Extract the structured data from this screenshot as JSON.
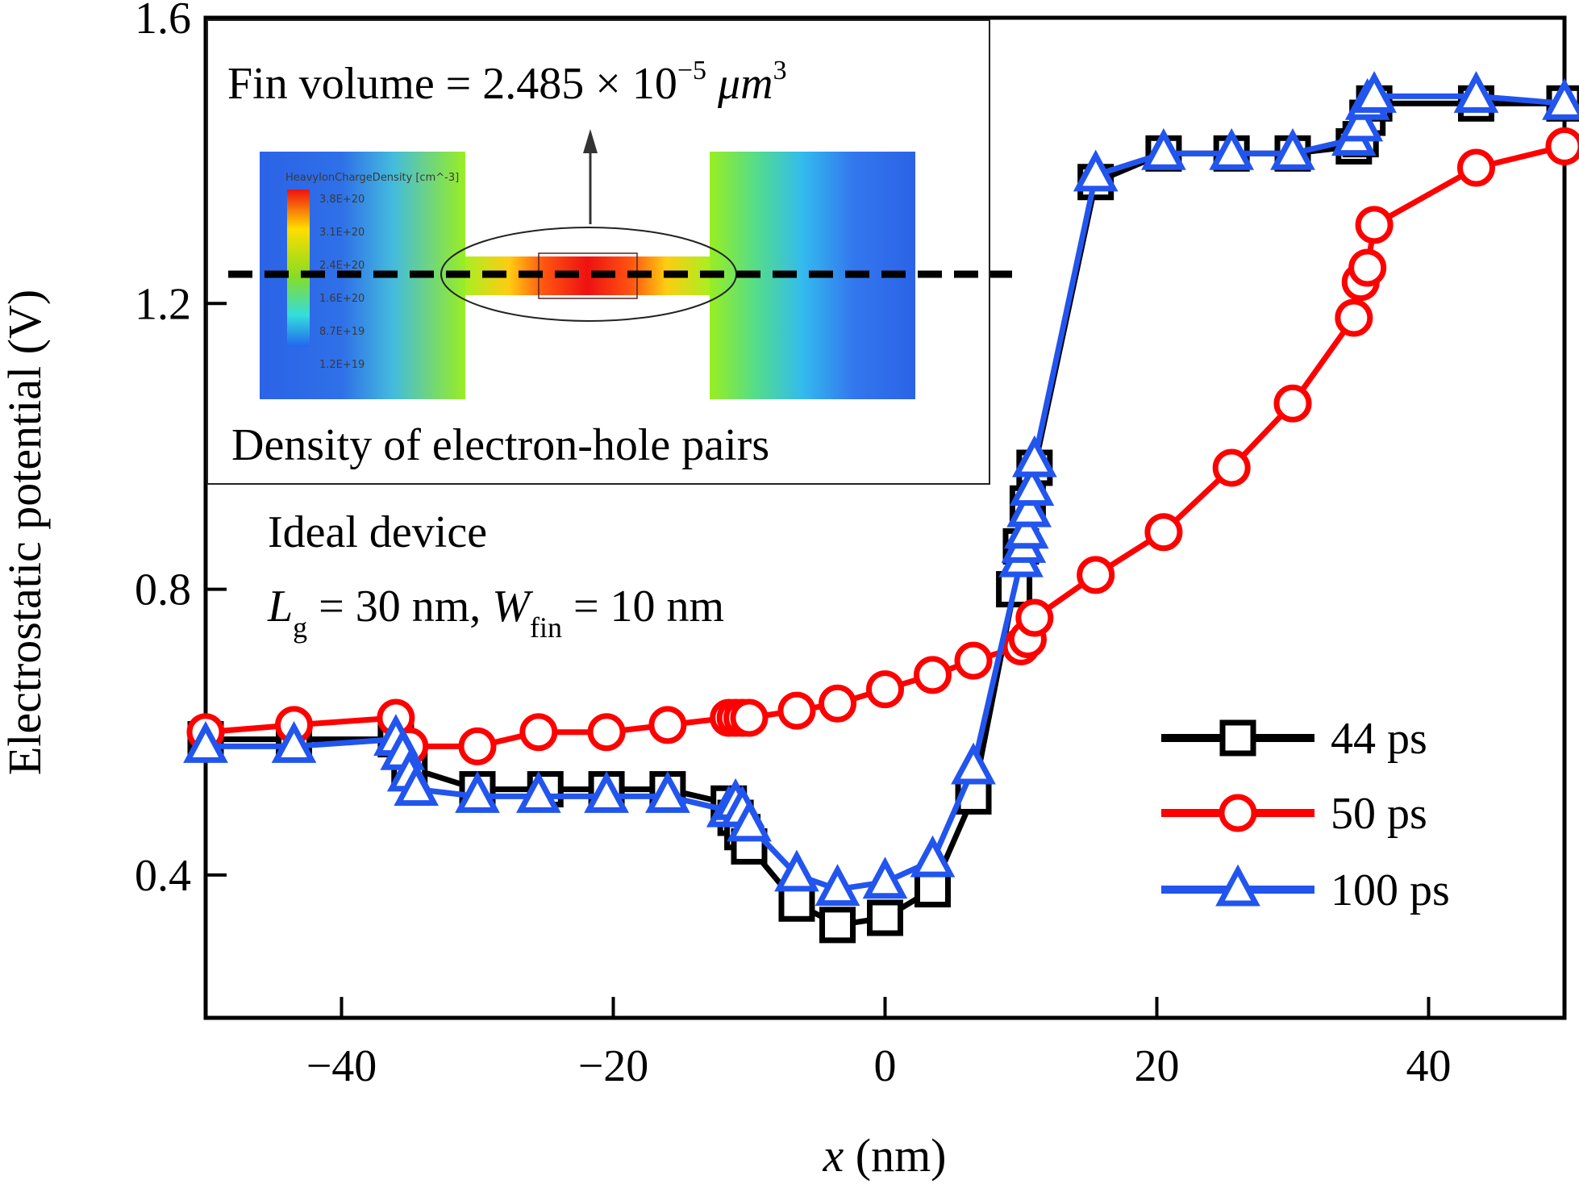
{
  "chart_data": {
    "type": "line",
    "title": "",
    "xlabel": "x (nm)",
    "xlabel_var": "x",
    "xlabel_unit": "(nm)",
    "ylabel": "Electrostatic potential (V)",
    "xlim": [
      -50,
      50
    ],
    "ylim": [
      0.2,
      1.6
    ],
    "xticks": [
      -40,
      -20,
      0,
      20,
      40
    ],
    "xtick_labels": [
      "−40",
      "−20",
      "0",
      "20",
      "40"
    ],
    "yticks": [
      0.4,
      0.8,
      1.2,
      1.6
    ],
    "ytick_labels": [
      "0.4",
      "0.8",
      "1.2",
      "1.6"
    ],
    "grid": false,
    "legend_position": "bottom-right",
    "series": [
      {
        "name": "44 ps",
        "color": "#000000",
        "marker": "square",
        "x": [
          -50,
          -43.5,
          -36,
          -35,
          -30,
          -25,
          -20.5,
          -16,
          -11.5,
          -11,
          -10.5,
          -10,
          -6.5,
          -3.5,
          0,
          3.5,
          6.5,
          9.5,
          10,
          10.5,
          11,
          15.5,
          20.5,
          25.5,
          30,
          34.5,
          35,
          35.5,
          36,
          43.5,
          50
        ],
        "y": [
          0.59,
          0.59,
          0.59,
          0.55,
          0.52,
          0.52,
          0.52,
          0.52,
          0.5,
          0.48,
          0.46,
          0.44,
          0.36,
          0.33,
          0.34,
          0.38,
          0.51,
          0.8,
          0.86,
          0.92,
          0.97,
          1.37,
          1.41,
          1.41,
          1.41,
          1.42,
          1.43,
          1.46,
          1.48,
          1.48,
          1.48
        ]
      },
      {
        "name": "50 ps",
        "color": "#ff0000",
        "marker": "circle",
        "x": [
          -50,
          -43.5,
          -36,
          -35,
          -30,
          -25.5,
          -20.5,
          -16,
          -11.5,
          -11,
          -10.5,
          -10,
          -6.5,
          -3.5,
          0,
          3.5,
          6.5,
          10,
          10.5,
          11,
          15.5,
          20.5,
          25.5,
          30,
          34.5,
          35,
          35.5,
          36,
          43.5,
          50
        ],
        "y": [
          0.6,
          0.61,
          0.62,
          0.58,
          0.58,
          0.6,
          0.6,
          0.61,
          0.62,
          0.62,
          0.62,
          0.62,
          0.63,
          0.64,
          0.66,
          0.68,
          0.7,
          0.72,
          0.73,
          0.76,
          0.82,
          0.88,
          0.97,
          1.06,
          1.18,
          1.23,
          1.25,
          1.31,
          1.39,
          1.42
        ]
      },
      {
        "name": "100 ps",
        "color": "#2255ee",
        "marker": "triangle",
        "x": [
          -50,
          -43.5,
          -36,
          -35.5,
          -35,
          -34.5,
          -30,
          -25.5,
          -20.5,
          -16,
          -11.5,
          -11,
          -10.5,
          -10,
          -6.5,
          -3.5,
          0,
          3.5,
          6.5,
          10,
          10.2,
          10.4,
          10.6,
          10.8,
          11,
          15.5,
          20.5,
          25.5,
          30,
          34.5,
          35,
          35.5,
          36,
          43.5,
          50
        ],
        "y": [
          0.58,
          0.58,
          0.59,
          0.57,
          0.54,
          0.52,
          0.51,
          0.51,
          0.51,
          0.51,
          0.49,
          0.5,
          0.49,
          0.47,
          0.4,
          0.38,
          0.39,
          0.42,
          0.55,
          0.84,
          0.86,
          0.88,
          0.91,
          0.94,
          0.98,
          1.38,
          1.41,
          1.41,
          1.41,
          1.43,
          1.45,
          1.48,
          1.49,
          1.49,
          1.48
        ]
      }
    ],
    "annotations": {
      "inset_title": "Fin volume = 2.485 × 10",
      "inset_exp": "−5",
      "inset_unit": "μm",
      "inset_unit_exp": "3",
      "inset_caption": "Density of electron-hole pairs",
      "colorbar_title": "HeavyIonChargeDensity [cm^-3]",
      "colorbar_ticks": [
        "3.8E+20",
        "3.1E+20",
        "2.4E+20",
        "1.6E+20",
        "8.7E+19",
        "1.2E+19"
      ],
      "device_label": "Ideal device",
      "param_lg_sym": "L",
      "param_lg_sub": "g",
      "param_lg_val": " = 30 nm, ",
      "param_w_sym": "W",
      "param_w_sub": "fin",
      "param_w_val": " = 10 nm"
    }
  }
}
